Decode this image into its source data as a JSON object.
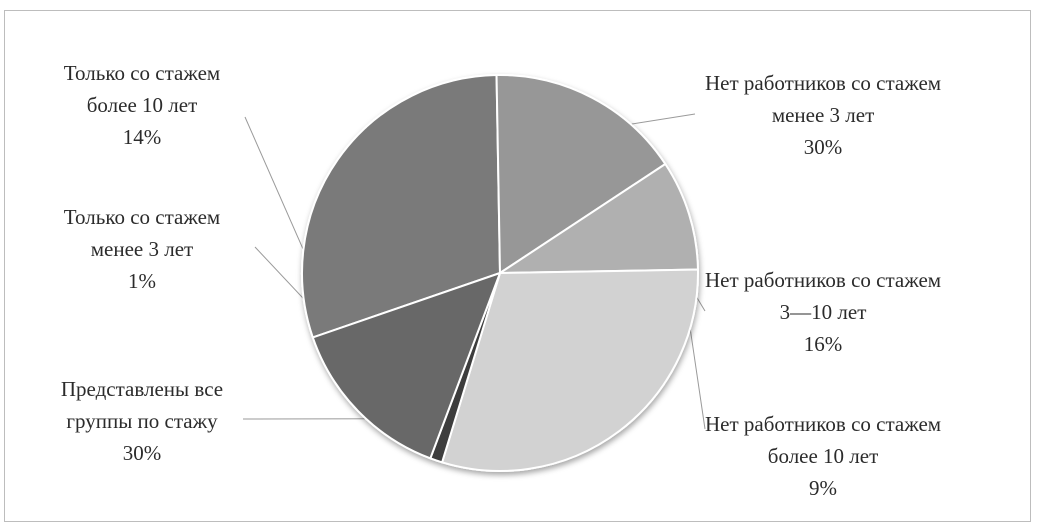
{
  "chart_data": {
    "type": "pie",
    "title": "",
    "slices": [
      {
        "label_lines": [
          "Нет работников со стажем",
          "менее 3 лет"
        ],
        "pct_label": "30%",
        "value": 30,
        "color": "#7a7a7a"
      },
      {
        "label_lines": [
          "Нет работников со стажем",
          "3—10 лет"
        ],
        "pct_label": "16%",
        "value": 16,
        "color": "#979797"
      },
      {
        "label_lines": [
          "Нет работников со стажем",
          "более 10 лет"
        ],
        "pct_label": "9%",
        "value": 9,
        "color": "#b0b0b0"
      },
      {
        "label_lines": [
          "Представлены все",
          "группы по стажу"
        ],
        "pct_label": "30%",
        "value": 30,
        "color": "#d2d2d2"
      },
      {
        "label_lines": [
          "Только со стажем",
          "менее 3 лет"
        ],
        "pct_label": "1%",
        "value": 1,
        "color": "#3e3e3e"
      },
      {
        "label_lines": [
          "Только со стажем",
          "более 10 лет"
        ],
        "pct_label": "14%",
        "value": 14,
        "color": "#686868"
      }
    ],
    "legend": "none"
  }
}
